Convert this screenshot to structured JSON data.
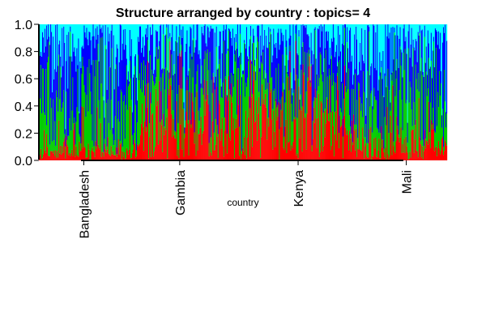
{
  "chart_data": {
    "type": "bar",
    "title": "Structure arranged by country : topics= 4",
    "xlabel": "country",
    "ylabel": "",
    "ylim": [
      0,
      1
    ],
    "y_ticks": [
      "0.0",
      "0.2",
      "0.4",
      "0.6",
      "0.8",
      "1.0"
    ],
    "y_tick_values": [
      0,
      0.2,
      0.4,
      0.6,
      0.8,
      1.0
    ],
    "categories": [
      "Bangladesh",
      "Gambia",
      "Kenya",
      "Mali"
    ],
    "category_positions": [
      0.11,
      0.345,
      0.635,
      0.9
    ],
    "grid": false,
    "legend": "none",
    "stacked": true,
    "series": [
      {
        "color": "#ff0000"
      },
      {
        "color": "#00cc00"
      },
      {
        "color": "#0000ff"
      },
      {
        "color": "#00ffff"
      }
    ],
    "group_red_mean": [
      0.05,
      0.35,
      0.45,
      0.1
    ],
    "n_samples": 500
  }
}
